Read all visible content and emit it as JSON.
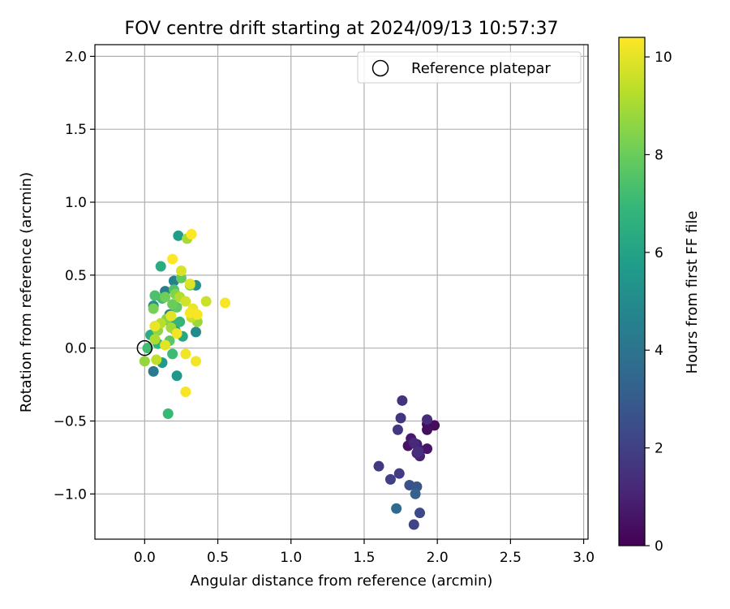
{
  "chart_data": {
    "type": "scatter",
    "title": "FOV centre drift starting at 2024/09/13 10:57:37",
    "xlabel": "Angular distance from reference (arcmin)",
    "ylabel": "Rotation from reference (arcmin)",
    "xlim": [
      -0.34,
      3.03
    ],
    "ylim": [
      -1.31,
      2.08
    ],
    "xticks": [
      0.0,
      0.5,
      1.0,
      1.5,
      2.0,
      2.5,
      3.0
    ],
    "xtick_labels": [
      "0.0",
      "0.5",
      "1.0",
      "1.5",
      "2.0",
      "2.5",
      "3.0"
    ],
    "yticks": [
      -1.0,
      -0.5,
      0.0,
      0.5,
      1.0,
      1.5,
      2.0
    ],
    "ytick_labels": [
      "−1.0",
      "−0.5",
      "0.0",
      "0.5",
      "1.0",
      "1.5",
      "2.0"
    ],
    "grid": true,
    "legend_position": "top-right",
    "legend": [
      {
        "label": "Reference platepar",
        "marker": "open-circle"
      }
    ],
    "reference_point": {
      "x": 0.0,
      "y": 0.0
    },
    "colorbar": {
      "label": "Hours from first FF file",
      "min": 0,
      "max": 10.4,
      "ticks": [
        0,
        2,
        4,
        6,
        8,
        10
      ],
      "tick_labels": [
        "0",
        "2",
        "4",
        "6",
        "8",
        "10"
      ],
      "colormap": [
        "#440154",
        "#482878",
        "#3e4989",
        "#31688e",
        "#26828e",
        "#1f9e89",
        "#35b779",
        "#6ece58",
        "#b5de2b",
        "#fde725"
      ]
    },
    "points": [
      {
        "x": 1.93,
        "y": -0.52,
        "hours": 0.2
      },
      {
        "x": 1.98,
        "y": -0.53,
        "hours": 0.3
      },
      {
        "x": 1.93,
        "y": -0.56,
        "hours": 0.4
      },
      {
        "x": 1.8,
        "y": -0.67,
        "hours": 0.5
      },
      {
        "x": 1.93,
        "y": -0.69,
        "hours": 0.6
      },
      {
        "x": 1.82,
        "y": -0.62,
        "hours": 0.7
      },
      {
        "x": 1.86,
        "y": -0.66,
        "hours": 0.8
      },
      {
        "x": 1.87,
        "y": -0.69,
        "hours": 0.9
      },
      {
        "x": 1.88,
        "y": -0.74,
        "hours": 1.0
      },
      {
        "x": 1.86,
        "y": -0.72,
        "hours": 1.1
      },
      {
        "x": 1.84,
        "y": -0.65,
        "hours": 1.2
      },
      {
        "x": 1.93,
        "y": -0.49,
        "hours": 1.3
      },
      {
        "x": 1.87,
        "y": -0.71,
        "hours": 1.4
      },
      {
        "x": 1.76,
        "y": -0.36,
        "hours": 1.5
      },
      {
        "x": 1.75,
        "y": -0.48,
        "hours": 1.6
      },
      {
        "x": 1.73,
        "y": -0.56,
        "hours": 1.7
      },
      {
        "x": 1.6,
        "y": -0.81,
        "hours": 1.8
      },
      {
        "x": 1.74,
        "y": -0.86,
        "hours": 1.9
      },
      {
        "x": 1.68,
        "y": -0.9,
        "hours": 2.0
      },
      {
        "x": 1.84,
        "y": -1.21,
        "hours": 2.1
      },
      {
        "x": 1.88,
        "y": -1.13,
        "hours": 2.3
      },
      {
        "x": 1.81,
        "y": -0.94,
        "hours": 2.6
      },
      {
        "x": 1.86,
        "y": -0.95,
        "hours": 2.8
      },
      {
        "x": 1.85,
        "y": -1.0,
        "hours": 3.2
      },
      {
        "x": 1.72,
        "y": -1.1,
        "hours": 3.6
      },
      {
        "x": 0.06,
        "y": -0.16,
        "hours": 4.2
      },
      {
        "x": 0.14,
        "y": 0.39,
        "hours": 4.5
      },
      {
        "x": 0.2,
        "y": 0.46,
        "hours": 4.6
      },
      {
        "x": 0.17,
        "y": 0.23,
        "hours": 4.8
      },
      {
        "x": 0.35,
        "y": 0.11,
        "hours": 5.0
      },
      {
        "x": 0.35,
        "y": 0.43,
        "hours": 5.2
      },
      {
        "x": 0.06,
        "y": 0.29,
        "hours": 5.3
      },
      {
        "x": 0.22,
        "y": -0.19,
        "hours": 5.5
      },
      {
        "x": 0.12,
        "y": -0.1,
        "hours": 5.6
      },
      {
        "x": 0.23,
        "y": 0.77,
        "hours": 5.8
      },
      {
        "x": 0.21,
        "y": 0.12,
        "hours": 6.0
      },
      {
        "x": 0.26,
        "y": 0.08,
        "hours": 6.2
      },
      {
        "x": 0.11,
        "y": 0.56,
        "hours": 6.4
      },
      {
        "x": 0.04,
        "y": 0.09,
        "hours": 6.5
      },
      {
        "x": 0.18,
        "y": 0.17,
        "hours": 6.6
      },
      {
        "x": 0.24,
        "y": 0.18,
        "hours": 6.8
      },
      {
        "x": 0.09,
        "y": 0.03,
        "hours": 6.9
      },
      {
        "x": 0.16,
        "y": -0.45,
        "hours": 7.0
      },
      {
        "x": 0.19,
        "y": -0.04,
        "hours": 7.1
      },
      {
        "x": 0.02,
        "y": 0.0,
        "hours": 7.2
      },
      {
        "x": 0.12,
        "y": 0.34,
        "hours": 7.3
      },
      {
        "x": 0.07,
        "y": 0.36,
        "hours": 7.4
      },
      {
        "x": 0.2,
        "y": 0.4,
        "hours": 7.5
      },
      {
        "x": 0.07,
        "y": 0.15,
        "hours": 7.6
      },
      {
        "x": 0.17,
        "y": 0.05,
        "hours": 7.7
      },
      {
        "x": 0.22,
        "y": 0.28,
        "hours": 7.8
      },
      {
        "x": 0.25,
        "y": 0.48,
        "hours": 7.9
      },
      {
        "x": 0.19,
        "y": 0.3,
        "hours": 8.0
      },
      {
        "x": 0.14,
        "y": 0.35,
        "hours": 8.1
      },
      {
        "x": 0.06,
        "y": 0.27,
        "hours": 8.2
      },
      {
        "x": 0.31,
        "y": 0.43,
        "hours": 8.3
      },
      {
        "x": 0.21,
        "y": 0.37,
        "hours": 8.4
      },
      {
        "x": 0.15,
        "y": 0.2,
        "hours": 8.5
      },
      {
        "x": 0.09,
        "y": 0.12,
        "hours": 8.6
      },
      {
        "x": 0.0,
        "y": -0.09,
        "hours": 8.7
      },
      {
        "x": 0.36,
        "y": 0.18,
        "hours": 8.8
      },
      {
        "x": 0.18,
        "y": 0.14,
        "hours": 8.9
      },
      {
        "x": 0.29,
        "y": 0.75,
        "hours": 9.0
      },
      {
        "x": 0.07,
        "y": 0.06,
        "hours": 9.1
      },
      {
        "x": 0.24,
        "y": 0.35,
        "hours": 9.2
      },
      {
        "x": 0.11,
        "y": 0.17,
        "hours": 9.3
      },
      {
        "x": 0.08,
        "y": -0.08,
        "hours": 9.4
      },
      {
        "x": 0.32,
        "y": 0.21,
        "hours": 9.5
      },
      {
        "x": 0.42,
        "y": 0.32,
        "hours": 9.6
      },
      {
        "x": 0.28,
        "y": 0.32,
        "hours": 9.7
      },
      {
        "x": 0.25,
        "y": 0.53,
        "hours": 9.8
      },
      {
        "x": 0.31,
        "y": 0.44,
        "hours": 9.9
      },
      {
        "x": 0.14,
        "y": 0.02,
        "hours": 10.0
      },
      {
        "x": 0.18,
        "y": 0.22,
        "hours": 10.0
      },
      {
        "x": 0.07,
        "y": 0.15,
        "hours": 10.1
      },
      {
        "x": 0.33,
        "y": 0.27,
        "hours": 10.1
      },
      {
        "x": 0.22,
        "y": 0.1,
        "hours": 10.2
      },
      {
        "x": 0.35,
        "y": -0.09,
        "hours": 10.2
      },
      {
        "x": 0.28,
        "y": -0.04,
        "hours": 10.2
      },
      {
        "x": 0.31,
        "y": 0.24,
        "hours": 10.3
      },
      {
        "x": 0.36,
        "y": 0.23,
        "hours": 10.3
      },
      {
        "x": 0.28,
        "y": -0.3,
        "hours": 10.3
      },
      {
        "x": 0.55,
        "y": 0.31,
        "hours": 10.3
      },
      {
        "x": 0.19,
        "y": 0.61,
        "hours": 10.4
      },
      {
        "x": 0.32,
        "y": 0.78,
        "hours": 10.4
      }
    ]
  }
}
